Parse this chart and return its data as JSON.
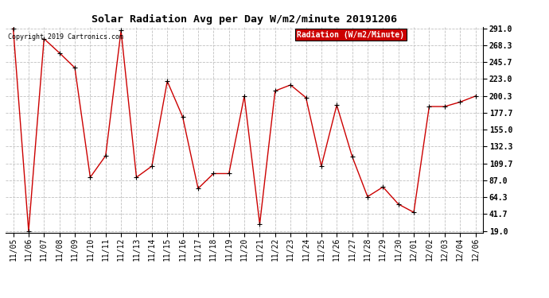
{
  "title": "Solar Radiation Avg per Day W/m2/minute 20191206",
  "copyright_text": "Copyright 2019 Cartronics.com",
  "legend_label": "Radiation (W/m2/Minute)",
  "x_labels": [
    "11/05",
    "11/06",
    "11/07",
    "11/08",
    "11/09",
    "11/10",
    "11/11",
    "11/12",
    "11/13",
    "11/14",
    "11/15",
    "11/16",
    "11/17",
    "11/18",
    "11/19",
    "11/20",
    "11/21",
    "11/22",
    "11/23",
    "11/24",
    "11/25",
    "11/26",
    "11/27",
    "11/28",
    "11/29",
    "11/30",
    "12/01",
    "12/02",
    "12/03",
    "12/04",
    "12/06"
  ],
  "y_values": [
    291.0,
    19.0,
    277.0,
    258.0,
    238.0,
    91.0,
    120.0,
    288.0,
    91.0,
    106.0,
    220.0,
    172.0,
    76.0,
    96.0,
    96.0,
    200.0,
    28.0,
    207.0,
    215.0,
    198.0,
    106.0,
    188.0,
    119.0,
    65.0,
    78.0,
    55.0,
    44.0,
    186.0,
    186.0,
    192.0,
    200.0
  ],
  "ylim_min": 19.0,
  "ylim_max": 291.0,
  "yticks": [
    291.0,
    268.3,
    245.7,
    223.0,
    200.3,
    177.7,
    155.0,
    132.3,
    109.7,
    87.0,
    64.3,
    41.7,
    19.0
  ],
  "line_color": "#cc0000",
  "marker_color": "#000000",
  "marker_style": "+",
  "grid_color": "#c0c0c0",
  "background_color": "#ffffff",
  "title_fontsize": 9.5,
  "tick_fontsize": 7,
  "copyright_fontsize": 6,
  "legend_fontsize": 7,
  "legend_bg": "#cc0000",
  "legend_fg": "#ffffff"
}
